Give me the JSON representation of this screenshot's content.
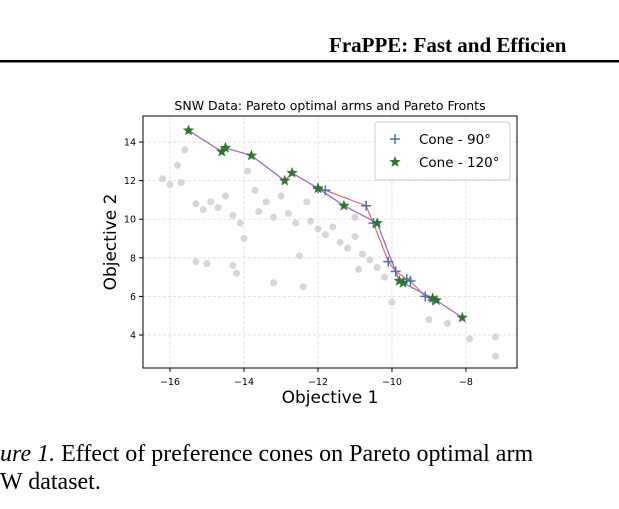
{
  "header": {
    "title": "FraPPE: Fast and Efficien"
  },
  "chart_data": {
    "type": "scatter",
    "title": "SNW Data: Pareto optimal arms and Pareto Fronts",
    "xlabel": "Objective 1",
    "ylabel": "Objective 2",
    "xlim": [
      -16.73,
      -6.62
    ],
    "ylim": [
      2.29,
      15.35
    ],
    "xticks": [
      {
        "value": -16,
        "label": "−16"
      },
      {
        "value": -14,
        "label": "−14"
      },
      {
        "value": -12,
        "label": "−12"
      },
      {
        "value": -10,
        "label": "−10"
      },
      {
        "value": -8,
        "label": "−8"
      }
    ],
    "yticks": [
      4,
      6,
      8,
      10,
      12,
      14
    ],
    "grid": true,
    "legend": "upper right",
    "series": [
      {
        "color": "#cccccc",
        "marker": "circle",
        "x": [
          -16.2,
          -16.0,
          -15.7,
          -15.6,
          -15.3,
          -15.1,
          -14.9,
          -14.7,
          -14.5,
          -14.3,
          -14.1,
          -14.0,
          -14.3,
          -14.2,
          -15.0,
          -15.3,
          -13.6,
          -13.4,
          -13.2,
          -13.0,
          -12.8,
          -12.6,
          -12.5,
          -12.4,
          -12.2,
          -12.0,
          -11.8,
          -11.6,
          -11.4,
          -11.2,
          -11.0,
          -10.8,
          -10.6,
          -10.4,
          -10.2,
          -10.0,
          -9.0,
          -8.5,
          -7.9,
          -7.2,
          -7.2,
          -13.9,
          -13.7,
          -12.3,
          -11.0,
          -10.9,
          -15.8,
          -13.2
        ],
        "values": [
          12.1,
          11.8,
          11.9,
          13.6,
          10.8,
          10.5,
          10.9,
          10.6,
          11.2,
          10.2,
          9.8,
          9.0,
          7.6,
          7.2,
          7.7,
          7.8,
          10.4,
          10.9,
          10.1,
          11.2,
          10.3,
          9.8,
          8.1,
          6.5,
          9.9,
          9.5,
          9.2,
          9.6,
          8.8,
          8.5,
          9.1,
          8.2,
          7.9,
          7.5,
          7.0,
          5.7,
          4.8,
          4.6,
          3.8,
          3.9,
          2.9,
          12.5,
          11.5,
          10.9,
          10.1,
          7.4,
          12.8,
          6.7
        ]
      },
      {
        "name": "Cone - 90°",
        "color": "#4c72b0",
        "marker": "plus",
        "line_color": "#e0707a",
        "x": [
          -12.0,
          -11.8,
          -10.7,
          -10.5,
          -10.1,
          -9.9,
          -9.6,
          -9.5,
          -9.1,
          -8.9
        ],
        "values": [
          11.6,
          11.5,
          10.7,
          9.8,
          7.8,
          7.3,
          6.9,
          6.8,
          6.0,
          5.8
        ]
      },
      {
        "name": "Cone - 120°",
        "color": "#2a7a2a",
        "marker": "star",
        "line_color": "#9a6bbf",
        "x": [
          -15.5,
          -14.6,
          -14.5,
          -13.8,
          -12.9,
          -12.7,
          -12.0,
          -11.3,
          -10.4,
          -9.8,
          -9.7,
          -8.9,
          -8.8,
          -8.1
        ],
        "values": [
          14.6,
          13.5,
          13.7,
          13.3,
          12.0,
          12.4,
          11.6,
          10.7,
          9.8,
          6.8,
          6.7,
          5.9,
          5.8,
          4.9
        ]
      }
    ]
  },
  "caption": {
    "label": "ure 1.",
    "line1": "Effect of preference cones on Pareto optimal arm",
    "line2": "W dataset."
  }
}
